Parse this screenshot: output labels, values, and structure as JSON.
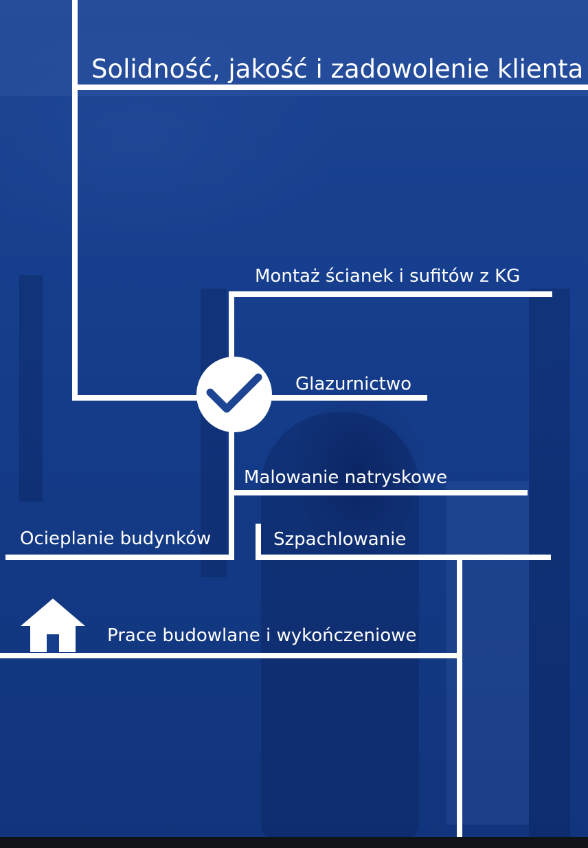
{
  "title": "Solidność, jakość i zadowolenie klienta",
  "services": {
    "montaz": "Montaż ścianek i sufitów z KG",
    "glazurnictwo": "Glazurnictwo",
    "malowanie": "Malowanie natryskowe",
    "ocieplanie": "Ocieplanie budynków",
    "szpachlowanie": "Szpachlowanie",
    "prace": "Prace budowlane i wykończeniowe"
  },
  "icons": {
    "center": "checkmark-icon",
    "home": "house-icon"
  },
  "colors": {
    "background": "#163e8d",
    "lines": "#ffffff",
    "check": "#1d4593"
  }
}
